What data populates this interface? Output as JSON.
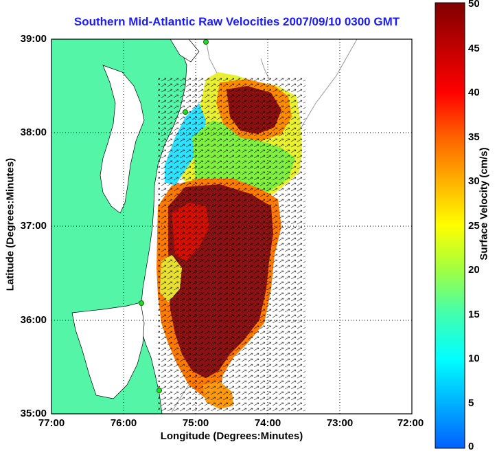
{
  "title": "Southern Mid-Atlantic Raw Velocities 2007/09/10 0300 GMT",
  "x_axis": {
    "label": "Longitude (Degrees:Minutes)",
    "ticks": [
      "77:00",
      "76:00",
      "75:00",
      "74:00",
      "73:00",
      "72:00"
    ]
  },
  "y_axis": {
    "label": "Latitude (Degrees:Minutes)",
    "ticks": [
      "39:00",
      "38:00",
      "37:00",
      "36:00",
      "35:00"
    ]
  },
  "colorbar": {
    "label": "Surface Velocity (cm/s)",
    "ticks": [
      "50",
      "45",
      "40",
      "35",
      "30",
      "25",
      "20",
      "15",
      "10",
      "5",
      "0"
    ],
    "min": 0,
    "max": 50
  },
  "map": {
    "lon_range": [
      -77,
      -72
    ],
    "lat_range": [
      35,
      39
    ],
    "land_color": "#55f5a8",
    "gridlines": "dotted",
    "stations": 4
  }
}
